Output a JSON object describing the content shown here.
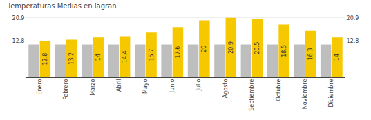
{
  "chart_data": {
    "type": "bar",
    "title": "Temperaturas Medias en lagran",
    "categories": [
      "Enero",
      "Febrero",
      "Marzo",
      "Abril",
      "Mayo",
      "Junio",
      "Julio",
      "Agosto",
      "Septiembre",
      "Octubre",
      "Noviembre",
      "Diciembre"
    ],
    "series": [
      {
        "color": "#BEBEBE",
        "values": [
          11.5,
          11.5,
          11.5,
          11.5,
          11.5,
          11.5,
          11.5,
          11.5,
          11.5,
          11.5,
          11.5,
          11.5
        ]
      },
      {
        "color": "#F5C800",
        "data_labels": true,
        "values": [
          12.8,
          13.2,
          14.0,
          14.4,
          15.7,
          17.6,
          20.0,
          20.9,
          20.5,
          18.5,
          16.3,
          14.0
        ]
      }
    ],
    "ylim": [
      0,
      21.8
    ],
    "yticks": [
      12.8,
      20.9
    ],
    "y2lim": [
      0,
      21.8
    ],
    "y2ticks": [
      12.8,
      20.9
    ],
    "grid": true
  }
}
